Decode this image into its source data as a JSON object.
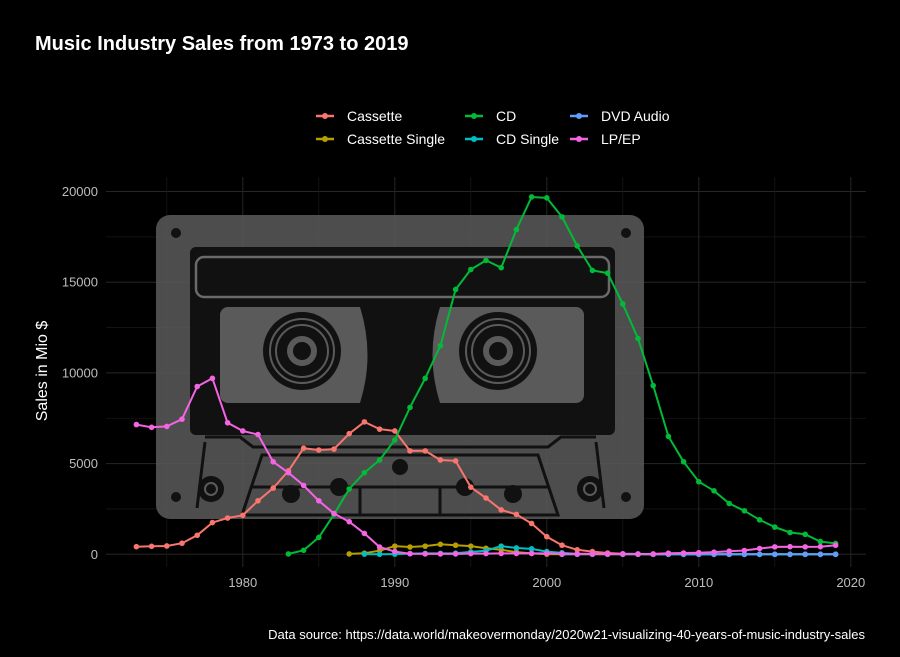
{
  "chart_data": {
    "type": "line",
    "title": "Music Industry Sales from 1973 to 2019",
    "xlabel": "",
    "ylabel": "Sales in Mio $",
    "xlim": [
      1971,
      2021
    ],
    "ylim": [
      -700,
      20800
    ],
    "x_ticks": [
      1980,
      1990,
      2000,
      2010,
      2020
    ],
    "y_ticks": [
      0,
      5000,
      10000,
      15000,
      20000
    ],
    "grid": true,
    "legend_position": "top",
    "caption": "Data source:  https://data.world/makeovermonday/2020w21-visualizing-40-years-of-music-industry-sales",
    "series": [
      {
        "name": "Cassette",
        "color": "#F8766D",
        "x": [
          1973,
          1974,
          1975,
          1976,
          1977,
          1978,
          1979,
          1980,
          1981,
          1982,
          1983,
          1984,
          1985,
          1986,
          1987,
          1988,
          1989,
          1990,
          1991,
          1992,
          1993,
          1994,
          1995,
          1996,
          1997,
          1998,
          1999,
          2000,
          2001,
          2002,
          2003,
          2004,
          2005,
          2006,
          2007,
          2008
        ],
        "y": [
          420,
          440,
          460,
          610,
          1050,
          1750,
          2000,
          2150,
          2950,
          3650,
          4600,
          5850,
          5750,
          5800,
          6650,
          7300,
          6900,
          6800,
          5700,
          5700,
          5200,
          5150,
          3700,
          3100,
          2450,
          2200,
          1700,
          970,
          500,
          250,
          150,
          70,
          30,
          10,
          5,
          0
        ]
      },
      {
        "name": "Cassette Single",
        "color": "#B79F00",
        "x": [
          1987,
          1988,
          1989,
          1990,
          1991,
          1992,
          1993,
          1994,
          1995,
          1996,
          1997,
          1998,
          1999,
          2000,
          2001,
          2002,
          2003,
          2004,
          2005,
          2006,
          2007,
          2008,
          2009,
          2010,
          2011,
          2012,
          2013,
          2014,
          2015,
          2016,
          2017,
          2018,
          2019
        ],
        "y": [
          20,
          60,
          200,
          450,
          400,
          450,
          550,
          500,
          450,
          330,
          250,
          120,
          50,
          10,
          0,
          0,
          0,
          0,
          0,
          0,
          0,
          0,
          0,
          0,
          0,
          0,
          0,
          0,
          0,
          0,
          0,
          0,
          0
        ]
      },
      {
        "name": "CD",
        "color": "#00BA38",
        "x": [
          1983,
          1984,
          1985,
          1986,
          1987,
          1988,
          1989,
          1990,
          1991,
          1992,
          1993,
          1994,
          1995,
          1996,
          1997,
          1998,
          1999,
          2000,
          2001,
          2002,
          2003,
          2004,
          2005,
          2006,
          2007,
          2008,
          2009,
          2010,
          2011,
          2012,
          2013,
          2014,
          2015,
          2016,
          2017,
          2018,
          2019
        ],
        "y": [
          20,
          220,
          930,
          2200,
          3600,
          4500,
          5200,
          6300,
          8100,
          9700,
          11500,
          14600,
          15700,
          16200,
          15800,
          17900,
          19700,
          19650,
          18600,
          17000,
          15650,
          15500,
          13800,
          11900,
          9300,
          6500,
          5100,
          4000,
          3500,
          2800,
          2400,
          1900,
          1500,
          1200,
          1100,
          700,
          600
        ]
      },
      {
        "name": "CD Single",
        "color": "#00BFC4",
        "x": [
          1988,
          1989,
          1990,
          1991,
          1992,
          1993,
          1994,
          1995,
          1996,
          1997,
          1998,
          1999,
          2000,
          2001,
          2002,
          2003,
          2004,
          2005,
          2006,
          2007,
          2008,
          2009,
          2010,
          2011,
          2012,
          2013,
          2014,
          2015,
          2016,
          2017,
          2018,
          2019
        ],
        "y": [
          10,
          0,
          10,
          40,
          50,
          50,
          60,
          130,
          200,
          450,
          350,
          300,
          150,
          80,
          20,
          20,
          10,
          0,
          0,
          0,
          0,
          0,
          0,
          0,
          0,
          0,
          0,
          0,
          0,
          0,
          0,
          0
        ]
      },
      {
        "name": "DVD Audio",
        "color": "#619CFF",
        "x": [
          2001,
          2002,
          2003,
          2004,
          2005,
          2006,
          2007,
          2008,
          2009,
          2010,
          2011,
          2012,
          2013,
          2014,
          2015,
          2016,
          2017,
          2018,
          2019
        ],
        "y": [
          0,
          10,
          10,
          10,
          20,
          20,
          10,
          10,
          0,
          0,
          0,
          0,
          0,
          0,
          0,
          0,
          0,
          0,
          0
        ]
      },
      {
        "name": "LP/EP",
        "color": "#F564E3",
        "x": [
          1973,
          1974,
          1975,
          1976,
          1977,
          1978,
          1979,
          1980,
          1981,
          1982,
          1983,
          1984,
          1985,
          1986,
          1987,
          1988,
          1989,
          1990,
          1991,
          1992,
          1993,
          1994,
          1995,
          1996,
          1997,
          1998,
          1999,
          2000,
          2001,
          2002,
          2003,
          2004,
          2005,
          2006,
          2007,
          2008,
          2009,
          2010,
          2011,
          2012,
          2013,
          2014,
          2015,
          2016,
          2017,
          2018,
          2019
        ],
        "y": [
          7150,
          7000,
          7050,
          7450,
          9250,
          9700,
          7250,
          6800,
          6600,
          5100,
          4500,
          3800,
          2950,
          2250,
          1800,
          1150,
          400,
          150,
          30,
          20,
          20,
          20,
          40,
          40,
          50,
          50,
          50,
          50,
          30,
          20,
          20,
          20,
          15,
          15,
          20,
          60,
          70,
          90,
          120,
          170,
          210,
          320,
          410,
          420,
          410,
          420,
          500
        ]
      }
    ]
  }
}
